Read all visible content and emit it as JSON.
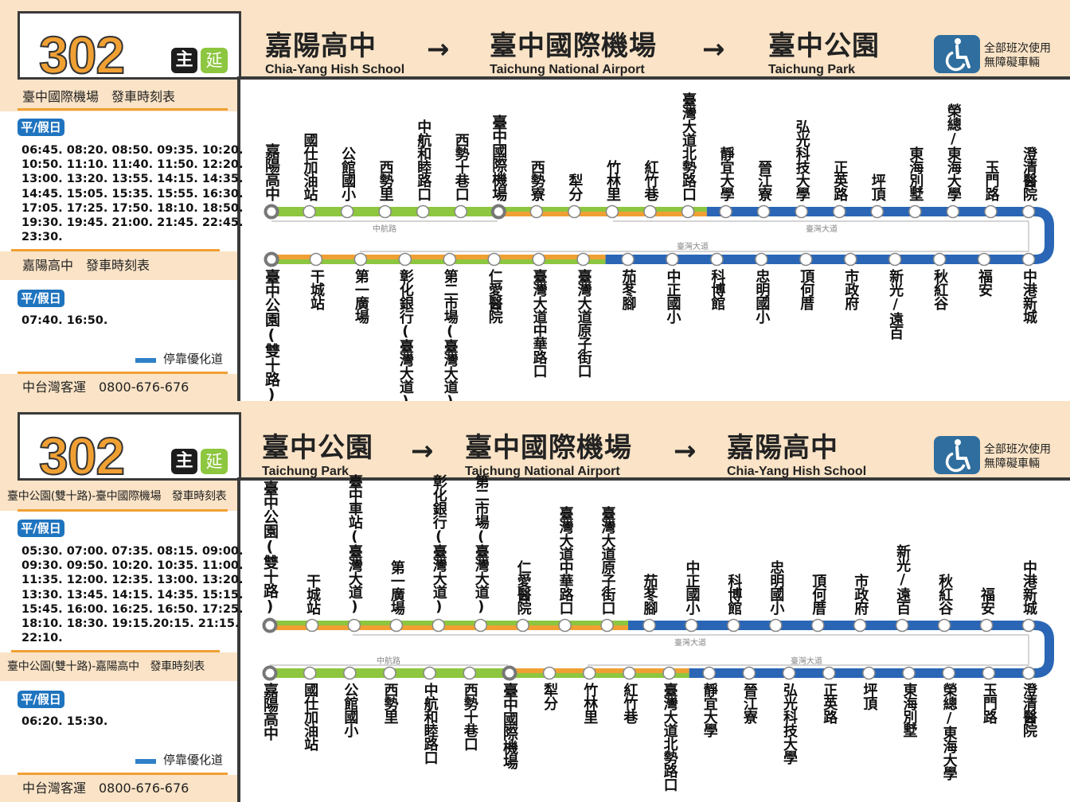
{
  "colors": {
    "main_green": "#8dc63f",
    "extension_orange": "#f0a033",
    "priority_lane_blue": "#2a66b5",
    "badge_blue": "#1f74bf",
    "beige": "#fae3c6"
  },
  "panels": [
    {
      "route_number": "302",
      "badge_main": "主",
      "badge_extension": "延",
      "destinations": [
        {
          "zh": "嘉陽高中",
          "en": "Chia-Yang Hish School"
        },
        {
          "zh": "臺中國際機場",
          "en": "Taichung National Airport"
        },
        {
          "zh": "臺中公園",
          "en": "Taichung Park"
        }
      ],
      "arrow": "→",
      "accessibility_icon": "wheelchair-icon",
      "accessibility_text": "全部班次使用\n無障礙車輛",
      "schedules": [
        {
          "title": "臺中國際機場　發車時刻表",
          "day_badge": "平/假日",
          "times": "06:45. 08:20. 08:50. 09:35. 10:20.\n10:50. 11:10. 11:40. 11:50. 12:20.\n13:00. 13:20. 13:55. 14:15. 14:35.\n14:45. 15:05. 15:35. 15:55. 16:30.\n17:05. 17:25. 17:50. 18:10. 18:50.\n19:30. 19:45. 21:00. 21:45. 22:45.\n23:30."
        },
        {
          "title": "嘉陽高中　發車時刻表",
          "day_badge": "平/假日",
          "times": "07:40. 16:50."
        }
      ],
      "legend": "停靠優化道",
      "operator": "中台灣客運　0800-676-676",
      "rows": [
        {
          "stops": [
            {
              "name": "嘉陽高中",
              "terminal": true
            },
            {
              "name": "國仕加油站"
            },
            {
              "name": "公館國小"
            },
            {
              "name": "西勢里"
            },
            {
              "name": "中航和睦路口"
            },
            {
              "name": "西勢十巷口"
            },
            {
              "name": "臺中國際機場",
              "terminal": true
            },
            {
              "name": "西勢寮"
            },
            {
              "name": "犁分"
            },
            {
              "name": "竹林里"
            },
            {
              "name": "紅竹巷"
            },
            {
              "name": "臺灣大道北勢路口"
            },
            {
              "name": "靜宜大學"
            },
            {
              "name": "晉江寮"
            },
            {
              "name": "弘光科技大學"
            },
            {
              "name": "正英路"
            },
            {
              "name": "坪頂"
            },
            {
              "name": "東海別墅"
            },
            {
              "name": "榮總/東海大學"
            },
            {
              "name": "玉門路"
            },
            {
              "name": "澄清醫院"
            }
          ],
          "segments": [
            {
              "from": 0,
              "to": 6,
              "style": "green"
            },
            {
              "from": 6,
              "to": 11.5,
              "style": "green-orange"
            },
            {
              "from": 11.5,
              "to": 20,
              "style": "blue"
            }
          ]
        },
        {
          "stops": [
            {
              "name": "臺中公園(雙十路)",
              "terminal": true
            },
            {
              "name": "干城站"
            },
            {
              "name": "第一廣場"
            },
            {
              "name": "彰化銀行(臺灣大道)"
            },
            {
              "name": "第二市場(臺灣大道)"
            },
            {
              "name": "仁愛醫院"
            },
            {
              "name": "臺灣大道中華路口"
            },
            {
              "name": "臺灣大道原子街口"
            },
            {
              "name": "茄苳腳"
            },
            {
              "name": "中正國小"
            },
            {
              "name": "科博館"
            },
            {
              "name": "忠明國小"
            },
            {
              "name": "頂何厝"
            },
            {
              "name": "市政府"
            },
            {
              "name": "新光/遠百"
            },
            {
              "name": "秋紅谷"
            },
            {
              "name": "福安"
            },
            {
              "name": "中港新城"
            }
          ],
          "segments": [
            {
              "from": 0,
              "to": 7.5,
              "style": "orange-green"
            },
            {
              "from": 7.5,
              "to": 17,
              "style": "blue"
            }
          ]
        }
      ],
      "roads": [
        "中航路",
        "臺灣大道",
        "臺灣大道"
      ]
    },
    {
      "route_number": "302",
      "badge_main": "主",
      "badge_extension": "延",
      "destinations": [
        {
          "zh": "臺中公園",
          "en": "Taichung Park"
        },
        {
          "zh": "臺中國際機場",
          "en": "Taichung National Airport"
        },
        {
          "zh": "嘉陽高中",
          "en": "Chia-Yang Hish School"
        }
      ],
      "arrow": "→",
      "accessibility_icon": "wheelchair-icon",
      "accessibility_text": "全部班次使用\n無障礙車輛",
      "schedules": [
        {
          "title": "臺中公園(雙十路)-臺中國際機場　發車時刻表",
          "day_badge": "平/假日",
          "times": "05:30. 07:00. 07:35. 08:15. 09:00.\n09:30. 09:50. 10:20. 10:35. 11:00.\n11:35. 12:00. 12:35. 13:00. 13:20.\n13:30. 13:45. 14:15. 14:35. 15:15.\n15:45. 16:00. 16:25. 16:50. 17:25.\n18:10. 18:30. 19:15.20:15. 21:15.\n22:10."
        },
        {
          "title": "臺中公園(雙十路)-嘉陽高中　發車時刻表",
          "day_badge": "平/假日",
          "times": "06:20. 15:30."
        }
      ],
      "legend": "停靠優化道",
      "operator": "中台灣客運　0800-676-676",
      "rows": [
        {
          "stops": [
            {
              "name": "臺中公園(雙十路)",
              "terminal": true
            },
            {
              "name": "干城站"
            },
            {
              "name": "臺中車站(臺灣大道)"
            },
            {
              "name": "第一廣場"
            },
            {
              "name": "彰化銀行(臺灣大道)"
            },
            {
              "name": "第二市場(臺灣大道)"
            },
            {
              "name": "仁愛醫院"
            },
            {
              "name": "臺灣大道中華路口"
            },
            {
              "name": "臺灣大道原子街口"
            },
            {
              "name": "茄苳腳"
            },
            {
              "name": "中正國小"
            },
            {
              "name": "科博館"
            },
            {
              "name": "忠明國小"
            },
            {
              "name": "頂何厝"
            },
            {
              "name": "市政府"
            },
            {
              "name": "新光/遠百"
            },
            {
              "name": "秋紅谷"
            },
            {
              "name": "福安"
            },
            {
              "name": "中港新城"
            }
          ],
          "segments": [
            {
              "from": 0,
              "to": 8.5,
              "style": "green-orange"
            },
            {
              "from": 8.5,
              "to": 18,
              "style": "blue"
            }
          ]
        },
        {
          "stops": [
            {
              "name": "嘉陽高中",
              "terminal": true
            },
            {
              "name": "國仕加油站"
            },
            {
              "name": "公館國小"
            },
            {
              "name": "西勢里"
            },
            {
              "name": "中航和睦路口"
            },
            {
              "name": "西勢十巷口"
            },
            {
              "name": "臺中國際機場",
              "terminal": true
            },
            {
              "name": "犁分"
            },
            {
              "name": "竹林里"
            },
            {
              "name": "紅竹巷"
            },
            {
              "name": "臺灣大道北勢路口"
            },
            {
              "name": "靜宜大學"
            },
            {
              "name": "晉江寮"
            },
            {
              "name": "弘光科技大學"
            },
            {
              "name": "正英路"
            },
            {
              "name": "坪頂"
            },
            {
              "name": "東海別墅"
            },
            {
              "name": "榮總/東海大學"
            },
            {
              "name": "玉門路"
            },
            {
              "name": "澄清醫院"
            }
          ],
          "segments": [
            {
              "from": 0,
              "to": 6,
              "style": "green"
            },
            {
              "from": 6,
              "to": 10.5,
              "style": "orange-green"
            },
            {
              "from": 10.5,
              "to": 19,
              "style": "blue"
            }
          ]
        }
      ],
      "roads": [
        "臺灣大道",
        "中航路",
        "臺灣大道"
      ]
    }
  ]
}
